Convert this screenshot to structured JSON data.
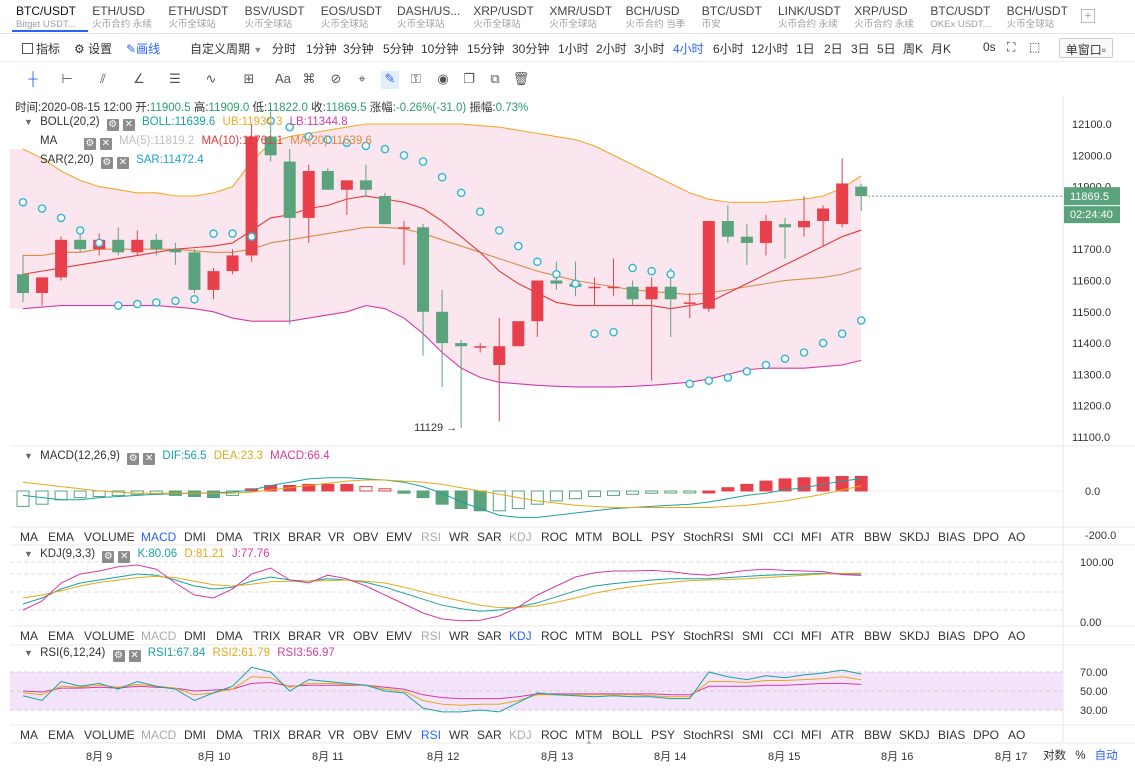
{
  "tabs": [
    {
      "symbol": "BTC/USDT",
      "sub": "Bitget USDT...",
      "active": true
    },
    {
      "symbol": "ETH/USD",
      "sub": "火币合约 永续"
    },
    {
      "symbol": "ETH/USDT",
      "sub": "火币全球站"
    },
    {
      "symbol": "BSV/USDT",
      "sub": "火币全球站"
    },
    {
      "symbol": "EOS/USDT",
      "sub": "火币全球站"
    },
    {
      "symbol": "DASH/US...",
      "sub": "火币全球站"
    },
    {
      "symbol": "XRP/USDT",
      "sub": "火币全球站"
    },
    {
      "symbol": "XMR/USDT",
      "sub": "火币全球站"
    },
    {
      "symbol": "BCH/USD",
      "sub": "火币合约 当季"
    },
    {
      "symbol": "BTC/USDT",
      "sub": "币安"
    },
    {
      "symbol": "LINK/USDT",
      "sub": "火币合约 永续"
    },
    {
      "symbol": "XRP/USD",
      "sub": "火币合约 永续"
    },
    {
      "symbol": "BTC/USDT",
      "sub": "OKEx USDT..."
    },
    {
      "symbol": "BCH/USDT",
      "sub": "火币全球站"
    }
  ],
  "add_tab": "+",
  "toolbar": {
    "indicator": "指标",
    "settings": "设置",
    "draw": "画线",
    "custom_period": "自定义周期",
    "periods": [
      "分时",
      "1分钟",
      "3分钟",
      "5分钟",
      "10分钟",
      "15分钟",
      "30分钟",
      "1小时",
      "2小时",
      "3小时",
      "4小时",
      "6小时",
      "12小时",
      "1日",
      "2日",
      "3日",
      "5日",
      "周K",
      "月K"
    ],
    "active_period": "4小时",
    "seconds": "0s",
    "window_mode": "单窗口"
  },
  "ohlc": {
    "time_label": "时间:",
    "time": "2020-08-15 12:00",
    "open_label": "开:",
    "open": "11900.5",
    "high_label": "高:",
    "high": "11909.0",
    "low_label": "低:",
    "low": "11822.0",
    "close_label": "收:",
    "close": "11869.5",
    "change_label": "涨幅:",
    "change": "-0.26%(-31.0)",
    "amp_label": "振幅:",
    "amp": "0.73%"
  },
  "legend": {
    "boll_name": "BOLL(20,2)",
    "boll": "BOLL:11639.6",
    "ub": "UB:11934.3",
    "lb": "LB:11344.8",
    "ma_name": "MA",
    "ma5": "MA(5):11819.2",
    "ma10": "MA(10):11761.1",
    "ma20": "MA(20):11639.6",
    "sar_name": "SAR(2,20)",
    "sar": "SAR:11472.4"
  },
  "macd": {
    "name": "MACD(12,26,9)",
    "dif": "DIF:56.5",
    "dea": "DEA:23.3",
    "macd": "MACD:66.4"
  },
  "kdj": {
    "name": "KDJ(9,3,3)",
    "k": "K:80.06",
    "d": "D:81.21",
    "j": "J:77.76"
  },
  "rsi": {
    "name": "RSI(6,12,24)",
    "rsi1": "RSI1:67.84",
    "rsi2": "RSI2:61.79",
    "rsi3": "RSI3:56.97"
  },
  "indicator_tabs": [
    "MA",
    "EMA",
    "VOLUME",
    "MACD",
    "DMI",
    "DMA",
    "TRIX",
    "BRAR",
    "VR",
    "OBV",
    "EMV",
    "RSI",
    "WR",
    "SAR",
    "KDJ",
    "ROC",
    "MTM",
    "BOLL",
    "PSY",
    "StochRSI",
    "SMI",
    "CCI",
    "MFI",
    "ATR",
    "BBW",
    "SKDJ",
    "BIAS",
    "DPO",
    "AO"
  ],
  "price_axis": [
    "12100.0",
    "12000.0",
    "11900.0",
    "11800.0",
    "11700.0",
    "11600.0",
    "11500.0",
    "11400.0",
    "11300.0",
    "11200.0",
    "11100.0"
  ],
  "current_price": "11869.5",
  "countdown": "02:24:40",
  "low_marker": "11129",
  "macd_axis": [
    "0.0",
    "-200.0"
  ],
  "kdj_axis": [
    "100.00",
    "0.00"
  ],
  "rsi_axis": [
    "70.00",
    "50.00",
    "30.00"
  ],
  "x_axis": [
    "8月 9",
    "8月 10",
    "8月 11",
    "8月 12",
    "8月 13",
    "8月 14",
    "8月 15",
    "8月 16",
    "8月 17"
  ],
  "bottom": {
    "log": "对数",
    "pct": "%",
    "auto": "自动"
  },
  "colors": {
    "up": "#e8404b",
    "down": "#5aa37c",
    "accent": "#2962ff",
    "boll_fill": "#fbe6ef",
    "rsi_fill": "#f3e4fb"
  },
  "chart_data": {
    "type": "candlestick",
    "timeframe": "4h",
    "candles": [
      [
        11620,
        11680,
        11530,
        11560
      ],
      [
        11560,
        11600,
        11520,
        11610
      ],
      [
        11610,
        11740,
        11600,
        11730
      ],
      [
        11730,
        11770,
        11690,
        11700
      ],
      [
        11700,
        11750,
        11680,
        11730
      ],
      [
        11730,
        11770,
        11680,
        11690
      ],
      [
        11690,
        11760,
        11680,
        11730
      ],
      [
        11730,
        11750,
        11680,
        11700
      ],
      [
        11700,
        11720,
        11650,
        11690
      ],
      [
        11690,
        11700,
        11560,
        11570
      ],
      [
        11570,
        11640,
        11540,
        11630
      ],
      [
        11630,
        11700,
        11620,
        11680
      ],
      [
        11680,
        12100,
        11660,
        12060
      ],
      [
        12060,
        12140,
        11980,
        12000
      ],
      [
        11980,
        12020,
        11460,
        11800
      ],
      [
        11800,
        11970,
        11720,
        11950
      ],
      [
        11950,
        11960,
        11890,
        11890
      ],
      [
        11890,
        11920,
        11810,
        11920
      ],
      [
        11920,
        11970,
        11870,
        11890
      ],
      [
        11870,
        11880,
        11780,
        11780
      ],
      [
        11770,
        11790,
        11650,
        11770
      ],
      [
        11770,
        11780,
        11360,
        11500
      ],
      [
        11500,
        11570,
        11260,
        11400
      ],
      [
        11400,
        11410,
        11129,
        11390
      ],
      [
        11390,
        11400,
        11370,
        11390
      ],
      [
        11330,
        11480,
        11150,
        11390
      ],
      [
        11390,
        11470,
        11400,
        11470
      ],
      [
        11470,
        11590,
        11420,
        11600
      ],
      [
        11600,
        11660,
        11570,
        11590
      ],
      [
        11590,
        11660,
        11550,
        11580
      ],
      [
        11580,
        11610,
        11520,
        11580
      ],
      [
        11580,
        11670,
        11550,
        11580
      ],
      [
        11580,
        11600,
        11520,
        11540
      ],
      [
        11540,
        11610,
        11280,
        11580
      ],
      [
        11580,
        11640,
        11420,
        11540
      ],
      [
        11530,
        11560,
        11480,
        11530
      ],
      [
        11510,
        11790,
        11500,
        11790
      ],
      [
        11790,
        11840,
        11720,
        11740
      ],
      [
        11740,
        11780,
        11650,
        11720
      ],
      [
        11720,
        11810,
        11680,
        11790
      ],
      [
        11780,
        11800,
        11670,
        11770
      ],
      [
        11770,
        11870,
        11740,
        11790
      ],
      [
        11790,
        11840,
        11710,
        11830
      ],
      [
        11780,
        11990,
        11770,
        11910
      ],
      [
        11900,
        11909,
        11822,
        11869.5
      ]
    ],
    "series": {
      "ma10": [
        11620,
        11630,
        11640,
        11650,
        11660,
        11670,
        11680,
        11690,
        11700,
        11705,
        11710,
        11720,
        11760,
        11800,
        11810,
        11830,
        11840,
        11860,
        11870,
        11860,
        11850,
        11830,
        11790,
        11740,
        11690,
        11630,
        11590,
        11560,
        11530,
        11520,
        11520,
        11520,
        11520,
        11520,
        11510,
        11520,
        11530,
        11560,
        11590,
        11620,
        11650,
        11680,
        11710,
        11740,
        11761.1
      ],
      "ma20": [
        11680,
        11680,
        11690,
        11690,
        11700,
        11700,
        11700,
        11700,
        11700,
        11695,
        11690,
        11690,
        11700,
        11720,
        11730,
        11740,
        11750,
        11760,
        11770,
        11770,
        11765,
        11750,
        11730,
        11710,
        11690,
        11670,
        11650,
        11630,
        11615,
        11600,
        11590,
        11580,
        11570,
        11565,
        11560,
        11555,
        11560,
        11570,
        11580,
        11590,
        11600,
        11605,
        11610,
        11620,
        11639.6
      ],
      "ub": [
        12020,
        11990,
        11950,
        11920,
        11900,
        11890,
        11880,
        11880,
        11870,
        11870,
        11880,
        11900,
        11980,
        12040,
        12060,
        12070,
        12080,
        12090,
        12100,
        12100,
        12100,
        12100,
        12100,
        12100,
        12095,
        12090,
        12080,
        12070,
        12060,
        12050,
        12030,
        12000,
        11970,
        11940,
        11910,
        11880,
        11860,
        11850,
        11850,
        11850,
        11855,
        11860,
        11870,
        11895,
        11934.3
      ],
      "lb": [
        11510,
        11515,
        11520,
        11520,
        11520,
        11520,
        11520,
        11520,
        11515,
        11510,
        11500,
        11480,
        11470,
        11470,
        11470,
        11480,
        11490,
        11500,
        11520,
        11510,
        11480,
        11430,
        11370,
        11320,
        11290,
        11275,
        11270,
        11265,
        11262,
        11260,
        11260,
        11260,
        11262,
        11265,
        11270,
        11275,
        11285,
        11300,
        11315,
        11320,
        11320,
        11320,
        11325,
        11330,
        11344.8
      ],
      "sar": [
        11850,
        11830,
        11800,
        11760,
        11720,
        11520,
        11525,
        11530,
        11535,
        11540,
        11750,
        11750,
        11740,
        12110,
        12090,
        12060,
        12050,
        12040,
        12030,
        12020,
        12000,
        11980,
        11930,
        11880,
        11820,
        11760,
        11710,
        11660,
        11620,
        11590,
        11430,
        11435,
        11640,
        11630,
        11620,
        11270,
        11280,
        11290,
        11310,
        11330,
        11350,
        11370,
        11400,
        11430,
        11472.4
      ]
    },
    "macd": {
      "hist": [
        -70,
        -60,
        -40,
        -30,
        -25,
        -20,
        -15,
        -15,
        -20,
        -25,
        -30,
        -20,
        10,
        25,
        25,
        30,
        30,
        30,
        20,
        10,
        -10,
        -30,
        -60,
        -80,
        -90,
        -90,
        -80,
        -60,
        -45,
        -35,
        -25,
        -20,
        -15,
        -10,
        -8,
        -8,
        0,
        15,
        30,
        45,
        55,
        60,
        63,
        66,
        66.4
      ],
      "dif": [
        -20,
        -30,
        -40,
        -40,
        -30,
        -25,
        -20,
        -15,
        -12,
        -10,
        -8,
        -5,
        5,
        25,
        40,
        55,
        60,
        60,
        55,
        50,
        40,
        20,
        -10,
        -50,
        -80,
        -110,
        -120,
        -120,
        -110,
        -100,
        -90,
        -80,
        -75,
        -70,
        -65,
        -60,
        -50,
        -35,
        -20,
        -10,
        5,
        15,
        30,
        45,
        56.5
      ],
      "dea": [
        40,
        30,
        20,
        10,
        0,
        -5,
        -10,
        -10,
        -10,
        -10,
        -10,
        -10,
        -5,
        5,
        15,
        25,
        35,
        45,
        50,
        50,
        45,
        40,
        30,
        15,
        0,
        -15,
        -30,
        -45,
        -55,
        -65,
        -70,
        -75,
        -75,
        -75,
        -75,
        -75,
        -75,
        -70,
        -65,
        -55,
        -45,
        -30,
        -15,
        5,
        23.3
      ],
      "ylim": [
        -220,
        120
      ]
    },
    "kdj": {
      "k": [
        30,
        40,
        55,
        65,
        70,
        75,
        80,
        78,
        70,
        60,
        55,
        58,
        68,
        75,
        70,
        68,
        72,
        70,
        66,
        58,
        48,
        38,
        28,
        22,
        18,
        20,
        25,
        32,
        42,
        52,
        60,
        64,
        67,
        70,
        72,
        72,
        72,
        74,
        76,
        78,
        79,
        80,
        81,
        80,
        80.06
      ],
      "d": [
        40,
        45,
        52,
        60,
        66,
        70,
        74,
        76,
        74,
        68,
        62,
        60,
        63,
        67,
        68,
        68,
        69,
        70,
        68,
        65,
        58,
        50,
        42,
        35,
        28,
        24,
        24,
        27,
        33,
        40,
        48,
        54,
        59,
        63,
        66,
        69,
        70,
        71,
        72,
        74,
        76,
        78,
        80,
        81,
        81.21
      ],
      "j": [
        20,
        35,
        65,
        80,
        85,
        92,
        95,
        88,
        65,
        45,
        40,
        55,
        80,
        90,
        70,
        65,
        78,
        72,
        60,
        45,
        30,
        15,
        5,
        2,
        3,
        10,
        25,
        45,
        60,
        75,
        82,
        85,
        85,
        86,
        84,
        80,
        78,
        82,
        86,
        88,
        86,
        85,
        84,
        79,
        77.76
      ]
    },
    "rsi": {
      "rsi1": [
        45,
        40,
        60,
        55,
        58,
        52,
        60,
        55,
        52,
        40,
        48,
        55,
        75,
        70,
        50,
        62,
        60,
        58,
        56,
        50,
        48,
        32,
        28,
        28,
        30,
        28,
        38,
        48,
        46,
        45,
        44,
        45,
        44,
        44,
        42,
        42,
        70,
        65,
        62,
        66,
        64,
        67,
        69,
        72,
        67.84
      ],
      "rsi2": [
        48,
        46,
        55,
        54,
        56,
        54,
        57,
        55,
        53,
        46,
        48,
        52,
        65,
        64,
        54,
        58,
        58,
        57,
        56,
        52,
        50,
        40,
        36,
        35,
        36,
        36,
        40,
        46,
        46,
        46,
        46,
        46,
        46,
        45,
        44,
        44,
        60,
        60,
        59,
        61,
        61,
        62,
        63,
        65,
        61.79
      ],
      "rsi3": [
        50,
        49,
        53,
        53,
        54,
        53,
        55,
        54,
        53,
        50,
        51,
        52,
        58,
        59,
        55,
        56,
        56,
        56,
        56,
        54,
        52,
        46,
        43,
        42,
        42,
        42,
        44,
        47,
        47,
        47,
        47,
        47,
        47,
        47,
        46,
        46,
        55,
        55,
        55,
        56,
        56,
        57,
        58,
        58,
        56.97
      ]
    },
    "ylim": [
      11050,
      12180
    ]
  }
}
